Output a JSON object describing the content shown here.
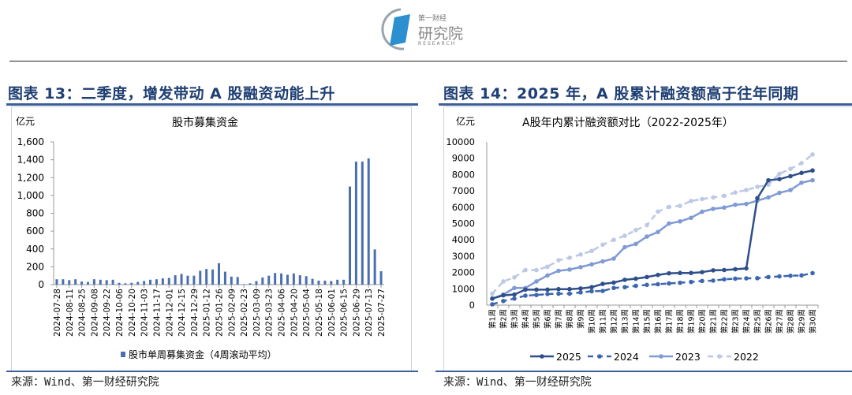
{
  "logo": {
    "line1": "第一财经",
    "line2": "研究院",
    "line3": "RESEARCH"
  },
  "left": {
    "figure_title": "图表 13：二季度，增发带动 A 股融资动能上升",
    "source": "来源：Wind、第一财经研究院"
  },
  "right": {
    "figure_title": "图表 14：2025 年，A 股累计融资额高于往年同期",
    "source": "来源：Wind、第一财经研究院"
  },
  "chart_data": [
    {
      "type": "bar",
      "title": "股市募集资金",
      "ylabel": "亿元",
      "xlabel": "",
      "ylim": [
        0,
        1600
      ],
      "yticks": [
        "0",
        "200",
        "400",
        "600",
        "800",
        "1,000",
        "1,200",
        "1,400",
        "1,600"
      ],
      "ytick_values": [
        0,
        200,
        400,
        600,
        800,
        1000,
        1200,
        1400,
        1600
      ],
      "xtick_labels": [
        "2024-07-28",
        "2024-08-11",
        "2024-08-25",
        "2024-09-08",
        "2024-09-22",
        "2024-10-06",
        "2024-10-20",
        "2024-11-03",
        "2024-11-17",
        "2024-12-01",
        "2024-12-15",
        "2024-12-29",
        "2025-01-12",
        "2025-01-26",
        "2025-02-09",
        "2025-02-23",
        "2025-03-09",
        "2025-03-23",
        "2025-04-06",
        "2025-04-20",
        "2025-05-04",
        "2025-05-18",
        "2025-06-01",
        "2025-06-15",
        "2025-06-29",
        "2025-07-13",
        "2025-07-27"
      ],
      "legend": "股市单周募集资金（4周滚动平均）",
      "legend_position": "bottom",
      "values": [
        60,
        60,
        50,
        60,
        35,
        30,
        60,
        55,
        50,
        55,
        20,
        15,
        20,
        30,
        40,
        55,
        60,
        70,
        75,
        105,
        120,
        100,
        100,
        155,
        175,
        170,
        240,
        145,
        90,
        85,
        5,
        15,
        40,
        80,
        100,
        130,
        125,
        110,
        125,
        105,
        95,
        65,
        45,
        45,
        40,
        55,
        55,
        1100,
        1380,
        1380,
        1415,
        395,
        150
      ],
      "color": "#4a6fb0"
    },
    {
      "type": "line",
      "title": "A股年内累计融资额对比（2022-2025年）",
      "ylabel": "亿元",
      "ylim": [
        0,
        10000
      ],
      "yticks": [
        "0",
        "1000",
        "2000",
        "3000",
        "4000",
        "5000",
        "6000",
        "7000",
        "8000",
        "9000",
        "10000"
      ],
      "ytick_values": [
        0,
        1000,
        2000,
        3000,
        4000,
        5000,
        6000,
        7000,
        8000,
        9000,
        10000
      ],
      "categories": [
        "第1周",
        "第2周",
        "第3周",
        "第4周",
        "第5周",
        "第6周",
        "第7周",
        "第8周",
        "第9周",
        "第10周",
        "第11周",
        "第12周",
        "第13周",
        "第14周",
        "第15周",
        "第16周",
        "第17周",
        "第18周",
        "第19周",
        "第20周",
        "第21周",
        "第22周",
        "第23周",
        "第24周",
        "第25周",
        "第26周",
        "第27周",
        "第28周",
        "第29周",
        "第30周"
      ],
      "legend_position": "bottom",
      "series": [
        {
          "name": "2025",
          "color": "#2f4f8a",
          "dash": false,
          "values": [
            400,
            600,
            650,
            950,
            950,
            950,
            980,
            980,
            1020,
            1100,
            1300,
            1380,
            1550,
            1620,
            1720,
            1850,
            1950,
            1970,
            1970,
            2020,
            2130,
            2150,
            2200,
            2250,
            6550,
            7650,
            7720,
            7900,
            8100,
            8250
          ]
        },
        {
          "name": "2024",
          "color": "#3d66b0",
          "dash": true,
          "values": [
            50,
            250,
            400,
            580,
            620,
            680,
            700,
            700,
            780,
            850,
            870,
            1050,
            1100,
            1180,
            1240,
            1280,
            1330,
            1370,
            1420,
            1480,
            1500,
            1580,
            1620,
            1640,
            1650,
            1720,
            1760,
            1800,
            1820,
            1960
          ]
        },
        {
          "name": "2023",
          "color": "#7f9ad4",
          "dash": false,
          "values": [
            400,
            650,
            1050,
            1050,
            1450,
            1820,
            2100,
            2180,
            2330,
            2500,
            2680,
            2850,
            3550,
            3750,
            4200,
            4480,
            5000,
            5130,
            5350,
            5720,
            5900,
            5980,
            6150,
            6200,
            6400,
            6600,
            6880,
            7050,
            7500,
            7650
          ]
        },
        {
          "name": "2022",
          "color": "#bcc8e6",
          "dash": true,
          "values": [
            700,
            1450,
            1700,
            2150,
            2150,
            2350,
            2750,
            2900,
            3100,
            3320,
            3700,
            4000,
            4250,
            4600,
            4900,
            5730,
            6020,
            6080,
            6380,
            6500,
            6600,
            6700,
            6900,
            7050,
            7250,
            7380,
            8050,
            8350,
            8700,
            9230
          ]
        }
      ]
    }
  ]
}
